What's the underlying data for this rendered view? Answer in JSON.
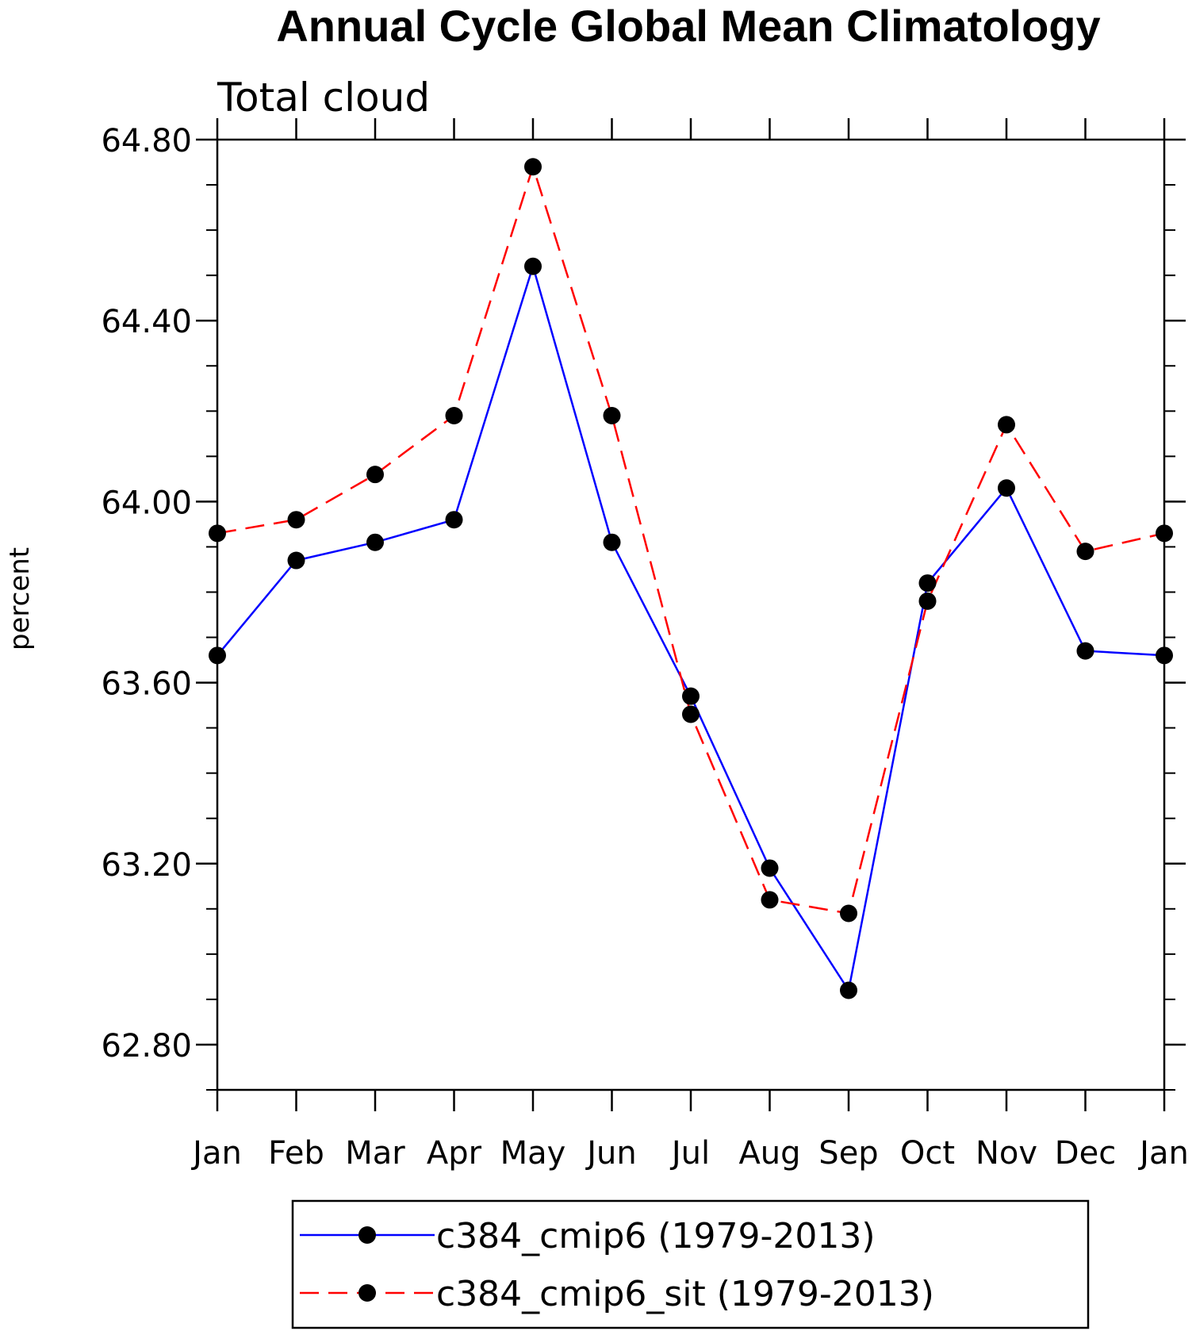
{
  "chart_data": {
    "type": "line",
    "title": "Annual Cycle Global Mean Climatology",
    "subtitle": "Total cloud",
    "xlabel": "",
    "ylabel": "percent",
    "categories": [
      "Jan",
      "Feb",
      "Mar",
      "Apr",
      "May",
      "Jun",
      "Jul",
      "Aug",
      "Sep",
      "Oct",
      "Nov",
      "Dec",
      "Jan"
    ],
    "ylim": [
      62.7,
      64.8
    ],
    "y_ticks": [
      62.8,
      63.2,
      63.6,
      64.0,
      64.4,
      64.8
    ],
    "y_tick_labels": [
      "62.80",
      "63.20",
      "63.60",
      "64.00",
      "64.40",
      "64.80"
    ],
    "y_minor_step": 0.1,
    "grid": false,
    "legend_position": "bottom",
    "series": [
      {
        "name": "c384_cmip6 (1979-2013)",
        "color": "#0000ff",
        "dash": "solid",
        "marker": "filled-circle",
        "values": [
          63.66,
          63.87,
          63.91,
          63.96,
          64.52,
          63.91,
          63.57,
          63.19,
          62.92,
          63.82,
          64.03,
          63.67,
          63.66
        ]
      },
      {
        "name": "c384_cmip6_sit (1979-2013)",
        "color": "#ff0000",
        "dash": "dashed",
        "marker": "filled-circle",
        "values": [
          63.93,
          63.96,
          64.06,
          64.19,
          64.74,
          64.19,
          63.53,
          63.12,
          63.09,
          63.78,
          64.17,
          63.89,
          63.93
        ]
      }
    ]
  }
}
